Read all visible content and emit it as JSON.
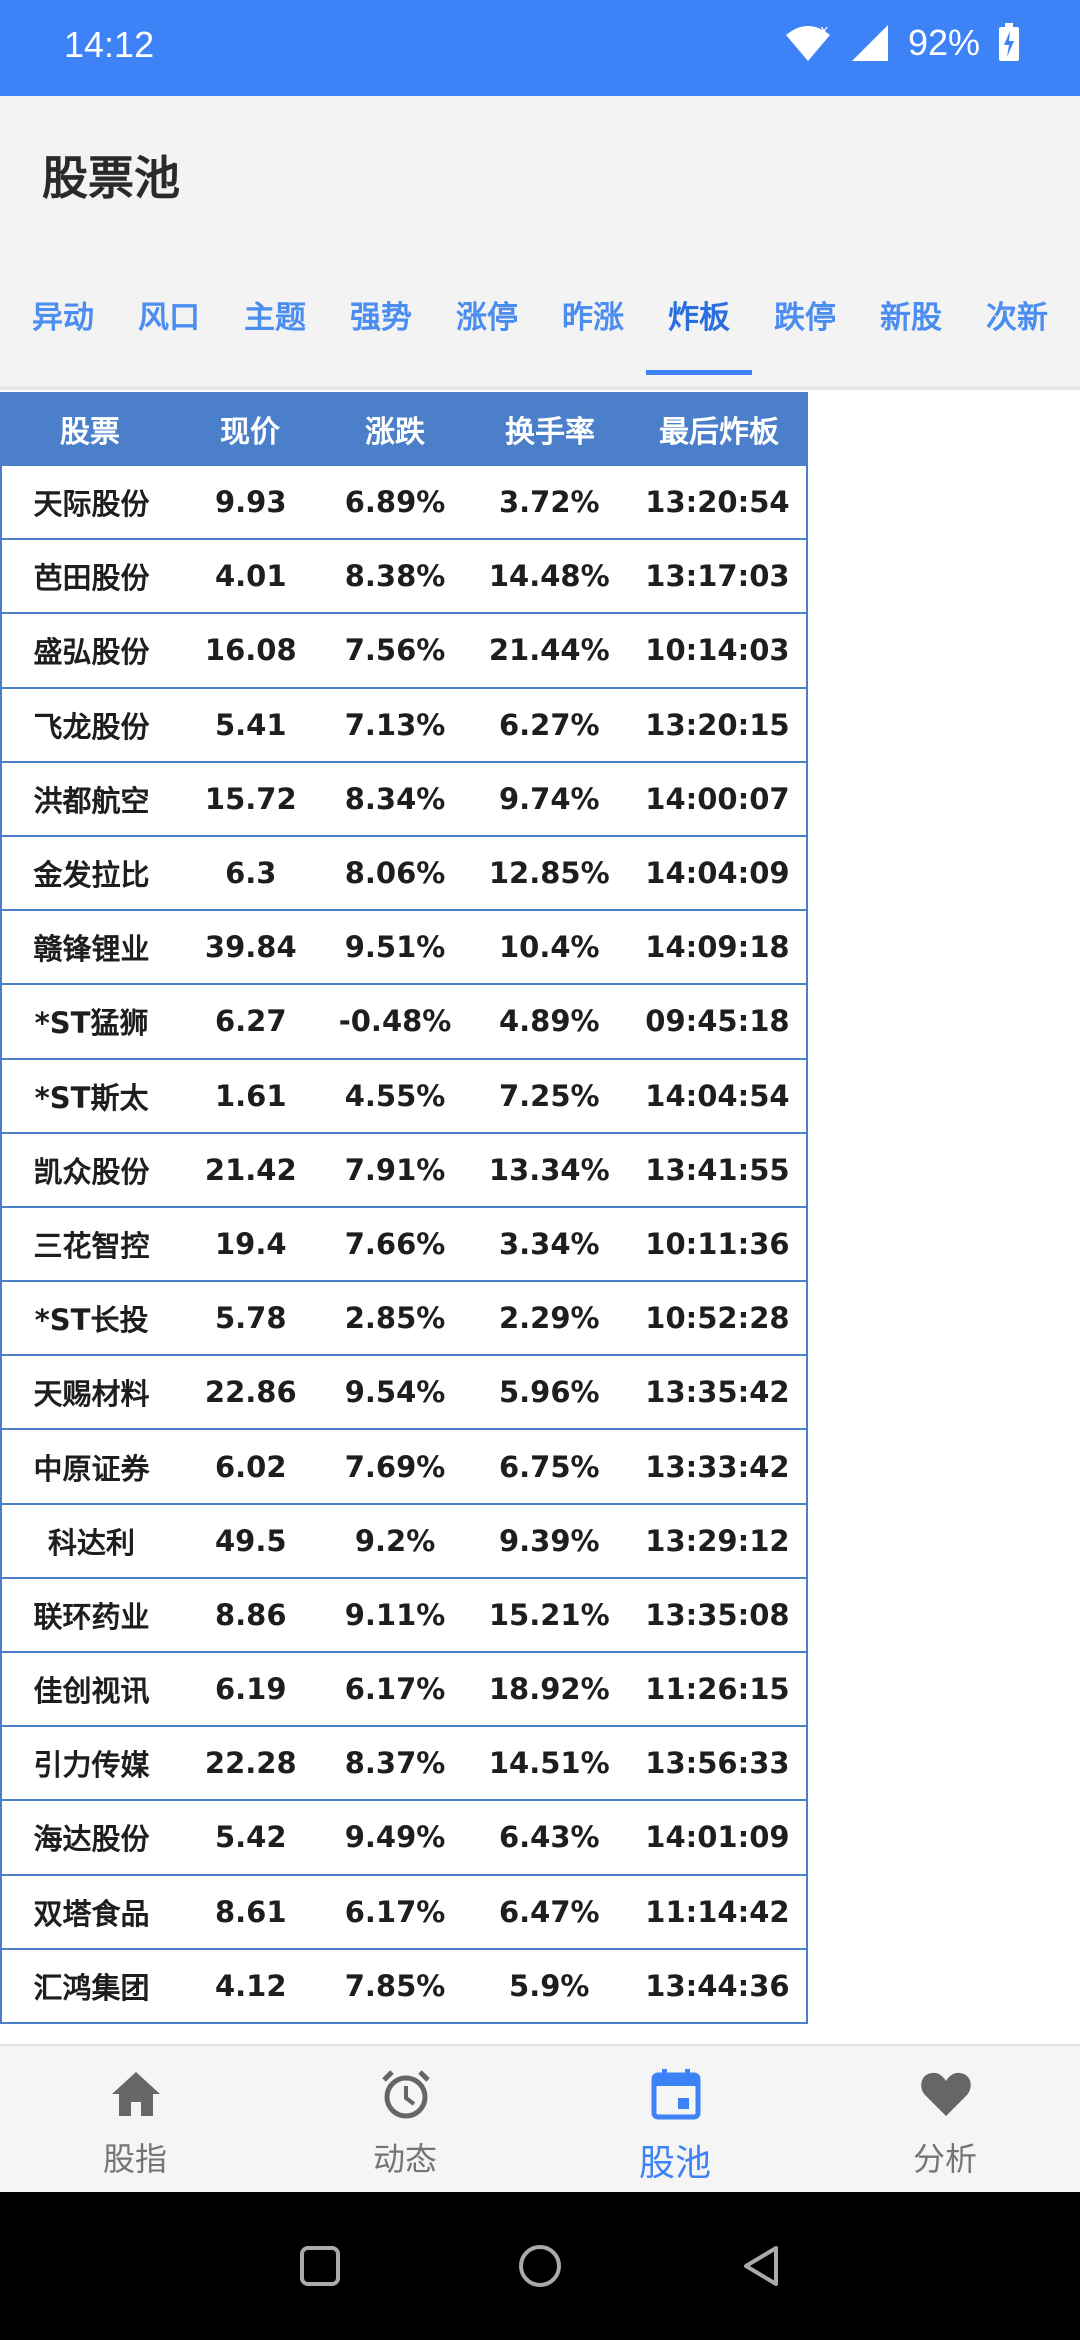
{
  "status": {
    "time": "14:12",
    "battery": "92%"
  },
  "app": {
    "title": "股票池"
  },
  "tabs": [
    "异动",
    "风口",
    "主题",
    "强势",
    "涨停",
    "昨涨",
    "炸板",
    "跌停",
    "新股",
    "次新"
  ],
  "active_tab": "炸板",
  "table": {
    "headers": [
      "股票",
      "现价",
      "涨跌",
      "换手率",
      "最后炸板"
    ],
    "rows": [
      [
        "天际股份",
        "9.93",
        "6.89%",
        "3.72%",
        "13:20:54"
      ],
      [
        "芭田股份",
        "4.01",
        "8.38%",
        "14.48%",
        "13:17:03"
      ],
      [
        "盛弘股份",
        "16.08",
        "7.56%",
        "21.44%",
        "10:14:03"
      ],
      [
        "飞龙股份",
        "5.41",
        "7.13%",
        "6.27%",
        "13:20:15"
      ],
      [
        "洪都航空",
        "15.72",
        "8.34%",
        "9.74%",
        "14:00:07"
      ],
      [
        "金发拉比",
        "6.3",
        "8.06%",
        "12.85%",
        "14:04:09"
      ],
      [
        "赣锋锂业",
        "39.84",
        "9.51%",
        "10.4%",
        "14:09:18"
      ],
      [
        "*ST猛狮",
        "6.27",
        "-0.48%",
        "4.89%",
        "09:45:18"
      ],
      [
        "*ST斯太",
        "1.61",
        "4.55%",
        "7.25%",
        "14:04:54"
      ],
      [
        "凯众股份",
        "21.42",
        "7.91%",
        "13.34%",
        "13:41:55"
      ],
      [
        "三花智控",
        "19.4",
        "7.66%",
        "3.34%",
        "10:11:36"
      ],
      [
        "*ST长投",
        "5.78",
        "2.85%",
        "2.29%",
        "10:52:28"
      ],
      [
        "天赐材料",
        "22.86",
        "9.54%",
        "5.96%",
        "13:35:42"
      ],
      [
        "中原证券",
        "6.02",
        "7.69%",
        "6.75%",
        "13:33:42"
      ],
      [
        "科达利",
        "49.5",
        "9.2%",
        "9.39%",
        "13:29:12"
      ],
      [
        "联环药业",
        "8.86",
        "9.11%",
        "15.21%",
        "13:35:08"
      ],
      [
        "佳创视讯",
        "6.19",
        "6.17%",
        "18.92%",
        "11:26:15"
      ],
      [
        "引力传媒",
        "22.28",
        "8.37%",
        "14.51%",
        "13:56:33"
      ],
      [
        "海达股份",
        "5.42",
        "9.49%",
        "6.43%",
        "14:01:09"
      ],
      [
        "双塔食品",
        "8.61",
        "6.17%",
        "6.47%",
        "11:14:42"
      ],
      [
        "汇鸿集团",
        "4.12",
        "7.85%",
        "5.9%",
        "13:44:36"
      ]
    ]
  },
  "bottom_nav": [
    {
      "label": "股指",
      "icon": "home-icon"
    },
    {
      "label": "动态",
      "icon": "alarm-clock-icon"
    },
    {
      "label": "股池",
      "icon": "calendar-icon"
    },
    {
      "label": "分析",
      "icon": "heart-icon"
    }
  ],
  "active_nav": "股池",
  "colors": {
    "primary": "#3e82f7",
    "table_header": "#4b7fc9"
  }
}
